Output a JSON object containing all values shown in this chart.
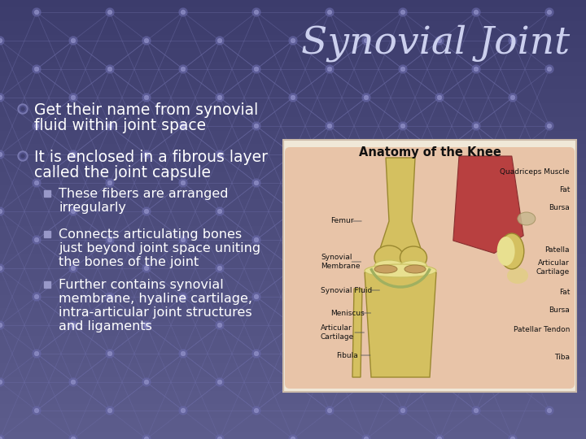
{
  "title": "Synovial Joint",
  "title_color": "#ccd0ee",
  "title_fontsize": 34,
  "bg_color": "#5c5c8c",
  "bullet1_line1": "Get their name from synovial",
  "bullet1_line2": "fluid within joint space",
  "bullet2_line1": "It is enclosed in a fibrous layer",
  "bullet2_line2": "called the joint capsule",
  "sub1_line1": "These fibers are arranged",
  "sub1_line2": "irregularly",
  "sub2_line1": "Connects articulating bones",
  "sub2_line2": "just beyond joint space uniting",
  "sub2_line3": "the bones of the joint",
  "sub3_line1": "Further contains synovial",
  "sub3_line2": "membrane, hyaline cartilage,",
  "sub3_line3": "intra-articular joint structures",
  "sub3_line4": "and ligaments",
  "text_color": "#ffffff",
  "bullet_fontsize": 13.5,
  "sub_fontsize": 11.5,
  "img_title": "Anatomy of the Knee",
  "skin_color": "#e8c4a8",
  "bone_color": "#d4c060",
  "muscle_color": "#b84040",
  "cartilage_color": "#e8e090",
  "fat_color": "#e0d080",
  "bursa_color": "#c8b890",
  "grid_line_color": "#7070aa",
  "grid_dot_color": "#6868a8",
  "img_bg_color": "#f0e8d8",
  "img_border_color": "#ccbbaa",
  "label_color": "#111111",
  "label_fontsize": 6.5
}
